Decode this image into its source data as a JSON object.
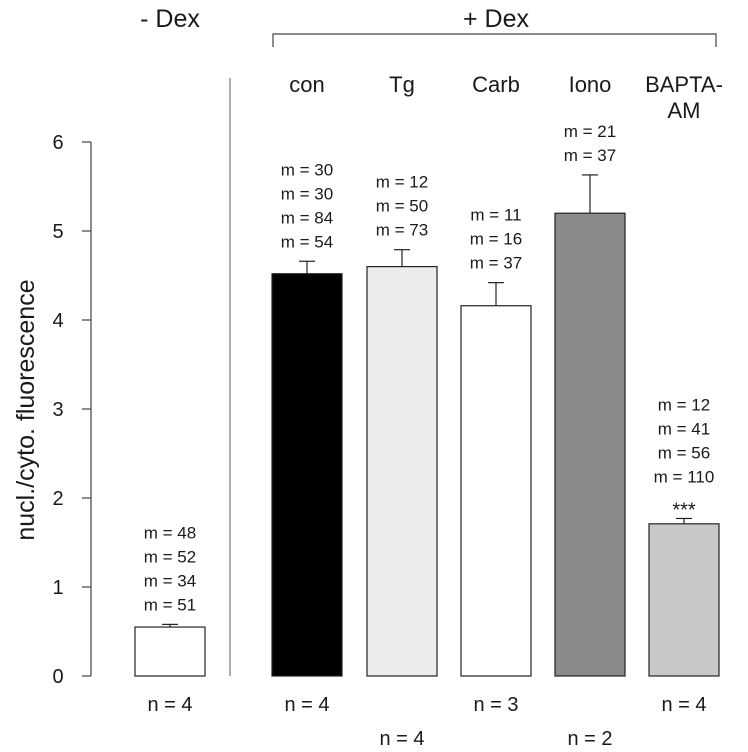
{
  "chart_data": {
    "type": "bar",
    "ylabel": "nucl./cyto. fluorescence",
    "ylim": [
      0,
      6
    ],
    "yticks": [
      "0",
      "1",
      "2",
      "3",
      "4",
      "5",
      "6"
    ],
    "groups": [
      "- Dex",
      "+ Dex"
    ],
    "categories": [
      "",
      "con",
      "Tg",
      "Carb",
      "Iono",
      "BAPTA-AM"
    ],
    "category_lines": [
      [
        ""
      ],
      [
        "con"
      ],
      [
        "Tg"
      ],
      [
        "Carb"
      ],
      [
        "Iono"
      ],
      [
        "BAPTA-",
        "AM"
      ]
    ],
    "values": [
      0.55,
      4.52,
      4.6,
      4.16,
      5.2,
      1.71
    ],
    "errors": [
      0.03,
      0.14,
      0.19,
      0.26,
      0.43,
      0.06
    ],
    "colors": [
      "#ffffff",
      "#000000",
      "#ececec",
      "#ffffff",
      "#8a8a8a",
      "#c8c8c8"
    ],
    "m_labels": [
      [
        "m = 48",
        "m = 52",
        "m = 34",
        "m = 51"
      ],
      [
        "m = 30",
        "m = 30",
        "m = 84",
        "m = 54"
      ],
      [
        "m = 12",
        "m = 50",
        "m = 73"
      ],
      [
        "m = 11",
        "m = 16",
        "m = 37"
      ],
      [
        "m = 21",
        "m = 37"
      ],
      [
        "m = 12",
        "m = 41",
        "m = 56",
        "m = 110"
      ]
    ],
    "n_labels": [
      "n = 4",
      "n = 4",
      "n = 4",
      "n = 3",
      "n = 2",
      "n = 4"
    ],
    "significance": [
      "",
      "",
      "",
      "",
      "",
      "***"
    ]
  }
}
